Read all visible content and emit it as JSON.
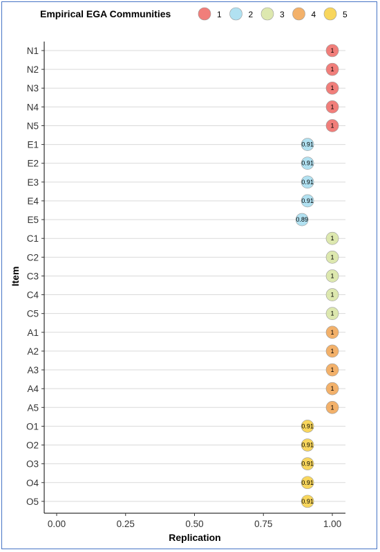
{
  "chart_data": {
    "type": "scatter",
    "xlabel": "Replication",
    "ylabel": "Item",
    "xlim": [
      -0.05,
      1.05
    ],
    "x_ticks": [
      "0.00",
      "0.25",
      "0.50",
      "0.75",
      "1.00"
    ],
    "x_tick_values": [
      0,
      0.25,
      0.5,
      0.75,
      1.0
    ],
    "grid": "horizontal",
    "legend": {
      "title": "Empirical EGA Communities",
      "placement": "top",
      "entries": [
        {
          "label": "1",
          "color": "#f0706c"
        },
        {
          "label": "2",
          "color": "#a9def0"
        },
        {
          "label": "3",
          "color": "#d9e6a6"
        },
        {
          "label": "4",
          "color": "#f2a85a"
        },
        {
          "label": "5",
          "color": "#f7d24a"
        }
      ]
    },
    "points": [
      {
        "item": "N1",
        "value": 1,
        "label": "1",
        "community": "1"
      },
      {
        "item": "N2",
        "value": 1,
        "label": "1",
        "community": "1"
      },
      {
        "item": "N3",
        "value": 1,
        "label": "1",
        "community": "1"
      },
      {
        "item": "N4",
        "value": 1,
        "label": "1",
        "community": "1"
      },
      {
        "item": "N5",
        "value": 1,
        "label": "1",
        "community": "1"
      },
      {
        "item": "E1",
        "value": 0.91,
        "label": "0.91",
        "community": "2"
      },
      {
        "item": "E2",
        "value": 0.91,
        "label": "0.91",
        "community": "2"
      },
      {
        "item": "E3",
        "value": 0.91,
        "label": "0.91",
        "community": "2"
      },
      {
        "item": "E4",
        "value": 0.91,
        "label": "0.91",
        "community": "2"
      },
      {
        "item": "E5",
        "value": 0.89,
        "label": "0.89",
        "community": "2"
      },
      {
        "item": "C1",
        "value": 1,
        "label": "1",
        "community": "3"
      },
      {
        "item": "C2",
        "value": 1,
        "label": "1",
        "community": "3"
      },
      {
        "item": "C3",
        "value": 1,
        "label": "1",
        "community": "3"
      },
      {
        "item": "C4",
        "value": 1,
        "label": "1",
        "community": "3"
      },
      {
        "item": "C5",
        "value": 1,
        "label": "1",
        "community": "3"
      },
      {
        "item": "A1",
        "value": 1,
        "label": "1",
        "community": "4"
      },
      {
        "item": "A2",
        "value": 1,
        "label": "1",
        "community": "4"
      },
      {
        "item": "A3",
        "value": 1,
        "label": "1",
        "community": "4"
      },
      {
        "item": "A4",
        "value": 1,
        "label": "1",
        "community": "4"
      },
      {
        "item": "A5",
        "value": 1,
        "label": "1",
        "community": "4"
      },
      {
        "item": "O1",
        "value": 0.91,
        "label": "0.91",
        "community": "5"
      },
      {
        "item": "O2",
        "value": 0.91,
        "label": "0.91",
        "community": "5"
      },
      {
        "item": "O3",
        "value": 0.91,
        "label": "0.91",
        "community": "5"
      },
      {
        "item": "O4",
        "value": 0.91,
        "label": "0.91",
        "community": "5"
      },
      {
        "item": "O5",
        "value": 0.91,
        "label": "0.91",
        "community": "5"
      }
    ]
  }
}
